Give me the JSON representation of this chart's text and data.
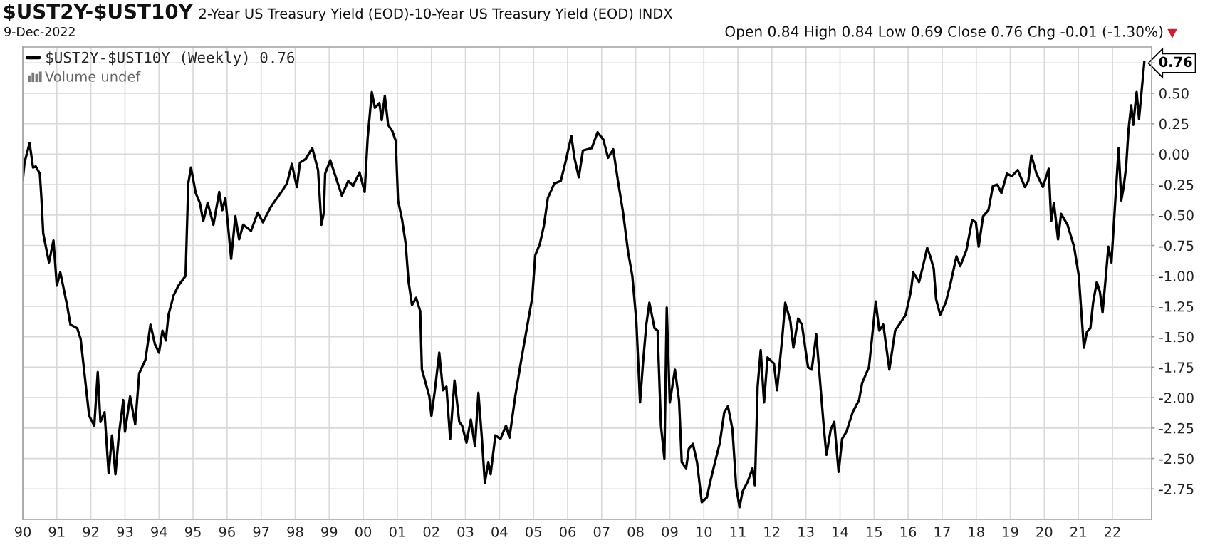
{
  "chart_data": {
    "type": "line",
    "title": "$UST2Y-$UST10Y",
    "subtitle": "2-Year US Treasury Yield (EOD)-10-Year US Treasury Yield (EOD) INDX",
    "annotations": [
      "9-Dec-2022",
      "Open 0.84 High 0.84 Low 0.69 Close 0.76 Chg -0.01 (-1.30%)",
      "Volume undef"
    ],
    "x": [
      "1990-01-01",
      "1990-01-19",
      "1990-03-15",
      "1990-04-21",
      "1990-05-20",
      "1990-07-03",
      "1990-07-21",
      "1990-08-08",
      "1990-10-09",
      "1990-11-26",
      "1991-01-01",
      "1991-02-07",
      "1991-04-21",
      "1991-05-27",
      "1991-08-08",
      "1991-09-14",
      "1991-10-20",
      "1991-12-14",
      "1992-02-07",
      "1992-03-15",
      "1992-04-13",
      "1992-05-27",
      "1992-07-10",
      "1992-08-15",
      "1992-09-21",
      "1992-10-27",
      "1992-12-14",
      "1993-01-01",
      "1993-02-25",
      "1993-04-21",
      "1993-06-03",
      "1993-08-08",
      "1993-10-02",
      "1993-11-18",
      "1994-01-01",
      "1994-02-07",
      "1994-03-15",
      "1994-04-13",
      "1994-06-07",
      "1994-07-28",
      "1994-10-13",
      "1994-11-11",
      "1994-12-10",
      "1995-01-30",
      "1995-03-15",
      "1995-04-21",
      "1995-06-07",
      "1995-08-08",
      "1995-10-09",
      "1995-11-11",
      "1995-12-14",
      "1996-02-14",
      "1996-03-30",
      "1996-05-09",
      "1996-06-22",
      "1996-09-14",
      "1996-11-26",
      "1997-01-19",
      "1997-04-17",
      "1997-07-28",
      "1997-10-05",
      "1997-11-26",
      "1998-01-19",
      "1998-02-21",
      "1998-04-24",
      "1998-07-03",
      "1998-09-03",
      "1998-10-09",
      "1998-11-04",
      "1998-11-18",
      "1999-01-12",
      "1999-05-16",
      "1999-07-24",
      "1999-09-14",
      "1999-11-22",
      "2000-01-16",
      "2000-02-17",
      "2000-04-02",
      "2000-05-05",
      "2000-06-22",
      "2000-07-17",
      "2000-08-19",
      "2000-09-24",
      "2000-11-07",
      "2000-12-14",
      "2001-01-08",
      "2001-02-21",
      "2001-03-30",
      "2001-05-01",
      "2001-06-07",
      "2001-07-21",
      "2001-09-03",
      "2001-09-21",
      "2001-11-11",
      "2001-12-10",
      "2002-01-01",
      "2002-02-07",
      "2002-03-26",
      "2002-05-05",
      "2002-06-11",
      "2002-07-21",
      "2002-09-06",
      "2002-10-27",
      "2002-11-26",
      "2003-01-12",
      "2003-02-28",
      "2003-04-13",
      "2003-05-20",
      "2003-06-25",
      "2003-07-28",
      "2003-09-03",
      "2003-09-28",
      "2003-11-18",
      "2004-01-12",
      "2004-03-11",
      "2004-04-17",
      "2004-06-18",
      "2004-08-26",
      "2004-10-16",
      "2004-12-17",
      "2005-01-19",
      "2005-03-08",
      "2005-04-21",
      "2005-06-03",
      "2005-08-12",
      "2005-10-20",
      "2005-12-14",
      "2006-02-10",
      "2006-03-15",
      "2006-05-01",
      "2006-06-14",
      "2006-09-17",
      "2006-11-18",
      "2007-01-19",
      "2007-03-11",
      "2007-05-05",
      "2007-06-25",
      "2007-08-19",
      "2007-10-13",
      "2007-11-26",
      "2008-01-08",
      "2008-02-17",
      "2008-03-19",
      "2008-04-24",
      "2008-05-27",
      "2008-07-21",
      "2008-08-23",
      "2008-09-28",
      "2008-11-04",
      "2008-11-29",
      "2009-01-01",
      "2009-02-25",
      "2009-04-10",
      "2009-05-09",
      "2009-06-25",
      "2009-07-24",
      "2009-09-06",
      "2009-10-20",
      "2009-12-10",
      "2010-02-03",
      "2010-03-08",
      "2010-05-01",
      "2010-06-22",
      "2010-08-08",
      "2010-09-17",
      "2010-11-04",
      "2010-12-14",
      "2011-01-19",
      "2011-02-21",
      "2011-04-17",
      "2011-06-07",
      "2011-07-03",
      "2011-08-01",
      "2011-09-03",
      "2011-10-09",
      "2011-11-15",
      "2012-01-23",
      "2012-02-25",
      "2012-04-21",
      "2012-05-23",
      "2012-07-17",
      "2012-08-19",
      "2012-10-09",
      "2012-11-18",
      "2013-01-23",
      "2013-03-04",
      "2013-04-21",
      "2013-06-11",
      "2013-07-13",
      "2013-08-08",
      "2013-09-24",
      "2013-10-31",
      "2013-12-17",
      "2014-01-23",
      "2014-03-11",
      "2014-05-16",
      "2014-07-24",
      "2014-08-26",
      "2014-11-07",
      "2014-12-10",
      "2015-01-19",
      "2015-02-25",
      "2015-04-10",
      "2015-06-14",
      "2015-08-15",
      "2015-12-06",
      "2016-01-30",
      "2016-02-25",
      "2016-04-28",
      "2016-06-18",
      "2016-07-24",
      "2016-08-26",
      "2016-10-02",
      "2016-10-27",
      "2016-12-10",
      "2017-02-07",
      "2017-03-26",
      "2017-06-03",
      "2017-07-13",
      "2017-09-17",
      "2017-11-18",
      "2017-12-28",
      "2018-01-27",
      "2018-03-15",
      "2018-05-12",
      "2018-06-29",
      "2018-08-15",
      "2018-09-28",
      "2018-11-26",
      "2019-01-19",
      "2019-03-22",
      "2019-06-07",
      "2019-07-13",
      "2019-08-15",
      "2019-10-09",
      "2019-12-17",
      "2020-02-17",
      "2020-03-15",
      "2020-04-13",
      "2020-05-27",
      "2020-06-29",
      "2020-09-06",
      "2020-11-15",
      "2021-01-05",
      "2021-02-28",
      "2021-04-02",
      "2021-05-09",
      "2021-06-07",
      "2021-07-17",
      "2021-08-19",
      "2021-09-17",
      "2021-10-20",
      "2021-11-18",
      "2021-12-21",
      "2022-02-03",
      "2022-03-08",
      "2022-04-06",
      "2022-05-01",
      "2022-05-27",
      "2022-06-22",
      "2022-07-21",
      "2022-08-12",
      "2022-09-17",
      "2022-10-13",
      "2022-12-09"
    ],
    "series": [
      {
        "name": "$UST2Y-$UST10Y (Weekly) 0.76",
        "color": "#000000",
        "values": [
          -0.21,
          -0.07,
          0.09,
          -0.11,
          -0.1,
          -0.16,
          -0.38,
          -0.65,
          -0.89,
          -0.71,
          -1.08,
          -0.97,
          -1.24,
          -1.4,
          -1.43,
          -1.52,
          -1.77,
          -2.15,
          -2.23,
          -1.79,
          -2.2,
          -2.12,
          -2.62,
          -2.31,
          -2.63,
          -2.31,
          -2.02,
          -2.28,
          -1.99,
          -2.22,
          -1.8,
          -1.69,
          -1.4,
          -1.56,
          -1.63,
          -1.45,
          -1.53,
          -1.32,
          -1.16,
          -1.08,
          -1.0,
          -0.24,
          -0.11,
          -0.32,
          -0.4,
          -0.55,
          -0.4,
          -0.58,
          -0.31,
          -0.46,
          -0.36,
          -0.86,
          -0.51,
          -0.7,
          -0.58,
          -0.63,
          -0.48,
          -0.56,
          -0.43,
          -0.32,
          -0.24,
          -0.08,
          -0.27,
          -0.07,
          -0.04,
          0.05,
          -0.13,
          -0.58,
          -0.48,
          -0.16,
          -0.05,
          -0.34,
          -0.22,
          -0.26,
          -0.15,
          -0.31,
          0.13,
          0.51,
          0.38,
          0.42,
          0.28,
          0.48,
          0.24,
          0.19,
          0.11,
          -0.38,
          -0.54,
          -0.73,
          -1.05,
          -1.24,
          -1.18,
          -1.29,
          -1.77,
          -1.91,
          -1.99,
          -2.15,
          -1.94,
          -1.63,
          -1.94,
          -1.91,
          -2.34,
          -1.86,
          -2.2,
          -2.23,
          -2.37,
          -2.18,
          -2.4,
          -1.96,
          -2.32,
          -2.7,
          -2.53,
          -2.63,
          -2.31,
          -2.34,
          -2.23,
          -2.33,
          -1.99,
          -1.67,
          -1.45,
          -1.18,
          -0.83,
          -0.74,
          -0.59,
          -0.36,
          -0.24,
          -0.22,
          -0.05,
          0.15,
          -0.03,
          -0.19,
          0.03,
          0.05,
          0.18,
          0.12,
          -0.03,
          0.04,
          -0.22,
          -0.48,
          -0.81,
          -1.0,
          -1.37,
          -2.04,
          -1.72,
          -1.4,
          -1.22,
          -1.43,
          -1.45,
          -2.23,
          -2.5,
          -1.26,
          -2.04,
          -1.77,
          -2.02,
          -2.53,
          -2.58,
          -2.42,
          -2.38,
          -2.53,
          -2.86,
          -2.82,
          -2.7,
          -2.53,
          -2.37,
          -2.12,
          -2.07,
          -2.26,
          -2.73,
          -2.9,
          -2.77,
          -2.69,
          -2.58,
          -2.72,
          -1.91,
          -1.61,
          -2.04,
          -1.67,
          -1.72,
          -1.94,
          -1.51,
          -1.22,
          -1.37,
          -1.59,
          -1.35,
          -1.4,
          -1.75,
          -1.77,
          -1.48,
          -1.96,
          -2.26,
          -2.47,
          -2.26,
          -2.2,
          -2.61,
          -2.34,
          -2.28,
          -2.12,
          -2.02,
          -1.88,
          -1.75,
          -1.51,
          -1.21,
          -1.45,
          -1.4,
          -1.77,
          -1.45,
          -1.32,
          -1.13,
          -0.97,
          -1.05,
          -0.89,
          -0.77,
          -0.84,
          -0.94,
          -1.19,
          -1.32,
          -1.22,
          -1.08,
          -0.84,
          -0.92,
          -0.79,
          -0.54,
          -0.56,
          -0.76,
          -0.51,
          -0.46,
          -0.26,
          -0.25,
          -0.32,
          -0.16,
          -0.18,
          -0.13,
          -0.27,
          -0.22,
          -0.01,
          -0.16,
          -0.27,
          -0.12,
          -0.55,
          -0.4,
          -0.7,
          -0.49,
          -0.58,
          -0.76,
          -1.0,
          -1.59,
          -1.46,
          -1.43,
          -1.22,
          -1.05,
          -1.13,
          -1.3,
          -1.02,
          -0.76,
          -0.89,
          -0.35,
          0.05,
          -0.38,
          -0.27,
          -0.11,
          0.2,
          0.4,
          0.24,
          0.51,
          0.29,
          0.76
        ]
      }
    ],
    "xlim": [
      "1990-01-01",
      "2023-02-25"
    ],
    "xticks": [
      {
        "value": "1990-01-01",
        "label": "90"
      },
      {
        "value": "1991-01-01",
        "label": "91"
      },
      {
        "value": "1992-01-01",
        "label": "92"
      },
      {
        "value": "1993-01-01",
        "label": "93"
      },
      {
        "value": "1994-01-01",
        "label": "94"
      },
      {
        "value": "1995-01-01",
        "label": "95"
      },
      {
        "value": "1996-01-01",
        "label": "96"
      },
      {
        "value": "1997-01-01",
        "label": "97"
      },
      {
        "value": "1998-01-01",
        "label": "98"
      },
      {
        "value": "1999-01-01",
        "label": "99"
      },
      {
        "value": "2000-01-01",
        "label": "00"
      },
      {
        "value": "2001-01-01",
        "label": "01"
      },
      {
        "value": "2002-01-01",
        "label": "02"
      },
      {
        "value": "2003-01-01",
        "label": "03"
      },
      {
        "value": "2004-01-01",
        "label": "04"
      },
      {
        "value": "2005-01-01",
        "label": "05"
      },
      {
        "value": "2006-01-01",
        "label": "06"
      },
      {
        "value": "2007-01-01",
        "label": "07"
      },
      {
        "value": "2008-01-01",
        "label": "08"
      },
      {
        "value": "2009-01-01",
        "label": "09"
      },
      {
        "value": "2010-01-01",
        "label": "10"
      },
      {
        "value": "2011-01-01",
        "label": "11"
      },
      {
        "value": "2012-01-01",
        "label": "12"
      },
      {
        "value": "2013-01-01",
        "label": "13"
      },
      {
        "value": "2014-01-01",
        "label": "14"
      },
      {
        "value": "2015-01-01",
        "label": "15"
      },
      {
        "value": "2016-01-01",
        "label": "16"
      },
      {
        "value": "2017-01-01",
        "label": "17"
      },
      {
        "value": "2018-01-01",
        "label": "18"
      },
      {
        "value": "2019-01-01",
        "label": "19"
      },
      {
        "value": "2020-01-01",
        "label": "20"
      },
      {
        "value": "2021-01-01",
        "label": "21"
      },
      {
        "value": "2022-01-01",
        "label": "22"
      }
    ],
    "ylim": [
      -3.0,
      0.88
    ],
    "yticks": [
      {
        "value": 0.76,
        "label": "0.76"
      },
      {
        "value": 0.75,
        "label": null
      },
      {
        "value": 0.5,
        "label": "0.50"
      },
      {
        "value": 0.25,
        "label": "0.25"
      },
      {
        "value": 0.0,
        "label": "0.00"
      },
      {
        "value": -0.25,
        "label": "-0.25"
      },
      {
        "value": -0.5,
        "label": "-0.50"
      },
      {
        "value": -0.75,
        "label": "-0.75"
      },
      {
        "value": -1.0,
        "label": "-1.00"
      },
      {
        "value": -1.25,
        "label": "-1.25"
      },
      {
        "value": -1.5,
        "label": "-1.50"
      },
      {
        "value": -1.75,
        "label": "-1.75"
      },
      {
        "value": -2.0,
        "label": "-2.00"
      },
      {
        "value": -2.25,
        "label": "-2.25"
      },
      {
        "value": -2.5,
        "label": "-2.50"
      },
      {
        "value": -2.75,
        "label": "-2.75"
      }
    ],
    "grid": true,
    "legend": "top left"
  }
}
